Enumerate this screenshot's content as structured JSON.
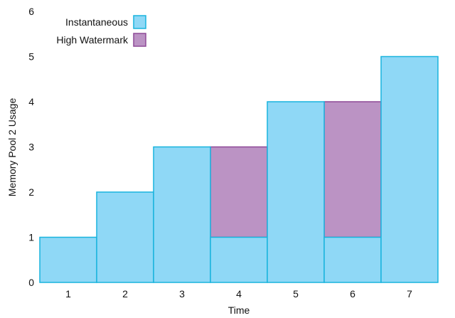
{
  "chart_data": {
    "type": "bar",
    "title": "",
    "xlabel": "Time",
    "ylabel": "Memory Pool 2 Usage",
    "categories": [
      "1",
      "2",
      "3",
      "4",
      "5",
      "6",
      "7"
    ],
    "series": [
      {
        "name": "Instantaneous",
        "values": [
          1,
          2,
          3,
          1,
          4,
          1,
          5
        ],
        "color": "#8fd8f6",
        "stroke": "#19b4dd"
      },
      {
        "name": "High Watermark",
        "values": [
          1,
          2,
          3,
          3,
          4,
          4,
          5
        ],
        "color": "#bb93c4",
        "stroke": "#8e4a97"
      }
    ],
    "ylim": [
      0,
      6
    ],
    "yticks": [
      0,
      1,
      2,
      3,
      4,
      5,
      6
    ],
    "grid": false,
    "legend_position": "top-left"
  }
}
